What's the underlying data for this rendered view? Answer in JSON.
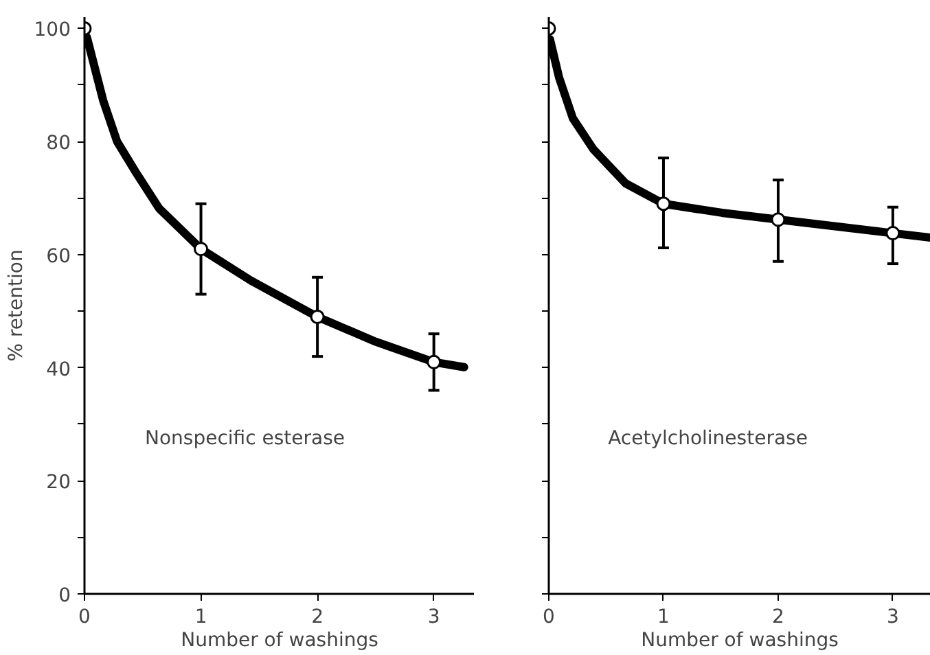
{
  "chart_data": [
    {
      "type": "line",
      "xlabel": "Number of washings",
      "ylabel": "% retention",
      "annotations": [
        "Nonspecific esterase"
      ],
      "xlim": [
        0,
        3.35
      ],
      "ylim": [
        0,
        102
      ],
      "xticks": [
        0,
        1,
        2,
        3
      ],
      "yticks": [
        0,
        {
          "value": 10,
          "label": null
        },
        20,
        {
          "value": 30,
          "label": null
        },
        40,
        {
          "value": 50,
          "label": null
        },
        60,
        {
          "value": 70,
          "label": null
        },
        80,
        {
          "value": 90,
          "label": null
        },
        100
      ],
      "grid": false,
      "series": [
        {
          "color": "#000000",
          "marker": "none",
          "x": [
            0.02,
            0.08,
            0.16,
            0.28,
            0.44,
            0.64,
            1,
            1.43,
            2,
            2.5,
            3,
            3.26
          ],
          "values": [
            98.5,
            93.7,
            87.3,
            80,
            74.6,
            68.2,
            61,
            55.4,
            49,
            44.6,
            41,
            40.1
          ]
        },
        {
          "type": "scatter",
          "color": "#000000",
          "marker": "circle",
          "x": [
            0,
            1,
            2,
            3
          ],
          "values": [
            100,
            61,
            49,
            41
          ],
          "errors": [
            null,
            [
              53,
              69
            ],
            [
              42,
              56
            ],
            [
              36,
              46
            ]
          ]
        }
      ]
    },
    {
      "type": "line",
      "xlabel": "Number of washings",
      "annotations": [
        "Acetylcholinesterase"
      ],
      "xlim": [
        0,
        3.33
      ],
      "ylim": [
        0,
        102
      ],
      "xticks": [
        0,
        1,
        2,
        3
      ],
      "yticks": [
        {
          "value": 0,
          "label": null
        },
        {
          "value": 10,
          "label": null
        },
        {
          "value": 20,
          "label": null
        },
        {
          "value": 30,
          "label": null
        },
        {
          "value": 40,
          "label": null
        },
        {
          "value": 50,
          "label": null
        },
        {
          "value": 60,
          "label": null
        },
        {
          "value": 70,
          "label": null
        },
        {
          "value": 80,
          "label": null
        },
        {
          "value": 90,
          "label": null
        },
        {
          "value": 100,
          "label": null
        }
      ],
      "tick_labels": "x",
      "grid": false,
      "series": [
        {
          "color": "#000000",
          "marker": "none",
          "x": [
            0.01,
            0.09,
            0.21,
            0.39,
            0.67,
            1,
            1.51,
            2,
            3,
            3.33
          ],
          "values": [
            98.1,
            91.3,
            84.1,
            78.6,
            72.6,
            69,
            67.4,
            66.2,
            63.8,
            63.0
          ]
        },
        {
          "type": "scatter",
          "color": "#000000",
          "marker": "circle",
          "x": [
            0,
            1,
            2,
            3
          ],
          "values": [
            100,
            69,
            66.2,
            63.8
          ],
          "errors": [
            null,
            [
              61.2,
              77.1
            ],
            [
              58.8,
              73.2
            ],
            [
              58.4,
              68.4
            ]
          ]
        }
      ]
    }
  ]
}
